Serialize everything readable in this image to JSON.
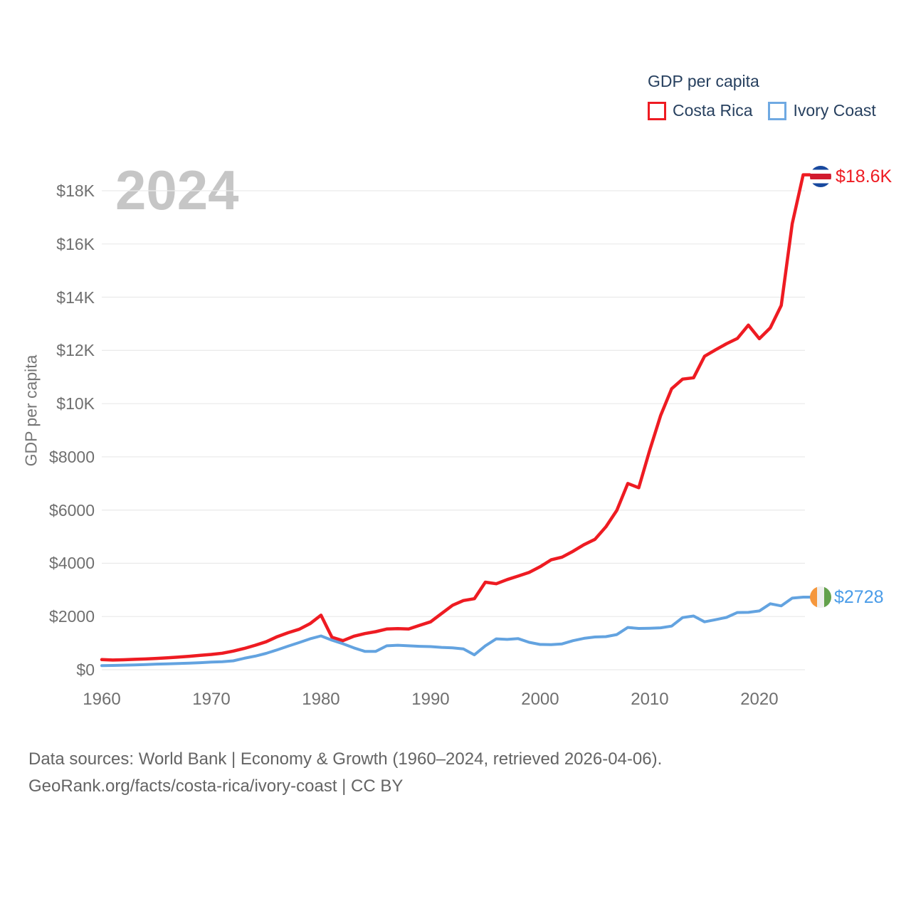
{
  "watermark": "2024",
  "legend": {
    "title": "GDP per capita",
    "items": [
      {
        "label": "Costa Rica",
        "color": "#ee1b22"
      },
      {
        "label": "Ivory Coast",
        "color": "#6fa9e2"
      }
    ]
  },
  "y_axis": {
    "title": "GDP per capita",
    "ticks": [
      {
        "label": "$18K",
        "value": 18000
      },
      {
        "label": "$16K",
        "value": 16000
      },
      {
        "label": "$14K",
        "value": 14000
      },
      {
        "label": "$12K",
        "value": 12000
      },
      {
        "label": "$10K",
        "value": 10000
      },
      {
        "label": "$8000",
        "value": 8000
      },
      {
        "label": "$6000",
        "value": 6000
      },
      {
        "label": "$4000",
        "value": 4000
      },
      {
        "label": "$2000",
        "value": 2000
      },
      {
        "label": "$0",
        "value": 0
      }
    ]
  },
  "x_axis": {
    "ticks": [
      {
        "label": "1960",
        "value": 1960
      },
      {
        "label": "1970",
        "value": 1970
      },
      {
        "label": "1980",
        "value": 1980
      },
      {
        "label": "1990",
        "value": 1990
      },
      {
        "label": "2000",
        "value": 2000
      },
      {
        "label": "2010",
        "value": 2010
      },
      {
        "label": "2020",
        "value": 2020
      }
    ]
  },
  "end_labels": {
    "costa_rica": {
      "series": "Costa Rica",
      "label": "$18.6K",
      "flag_icon": "costa-rica-flag-icon",
      "color": "#ee1b22"
    },
    "ivory_coast": {
      "series": "Ivory Coast",
      "label": "$2728",
      "flag_icon": "ivory-coast-flag-icon",
      "color": "#4a9ce8"
    }
  },
  "footer": {
    "line1": "Data sources: World Bank | Economy & Growth (1960–2024, retrieved 2026-04-06).",
    "line2": "GeoRank.org/facts/costa-rica/ivory-coast | CC BY"
  },
  "colors": {
    "costa_rica_line": "#ee1b22",
    "ivory_coast_line": "#63a3e0",
    "gridline": "#ebebeb",
    "axis_text": "#6f6f6f",
    "legend_text": "#27405f",
    "watermark": "#c6c6c6",
    "footer_text": "#646464"
  },
  "chart_data": {
    "type": "line",
    "title": "GDP per capita",
    "ylabel": "GDP per capita",
    "xlabel": "",
    "x_range": [
      1960,
      2024
    ],
    "ylim": [
      0,
      18600
    ],
    "grid": "horizontal",
    "legend_position": "top-right",
    "x": [
      1960,
      1961,
      1962,
      1963,
      1964,
      1965,
      1966,
      1967,
      1968,
      1969,
      1970,
      1971,
      1972,
      1973,
      1974,
      1975,
      1976,
      1977,
      1978,
      1979,
      1980,
      1981,
      1982,
      1983,
      1984,
      1985,
      1986,
      1987,
      1988,
      1989,
      1990,
      1991,
      1992,
      1993,
      1994,
      1995,
      1996,
      1997,
      1998,
      1999,
      2000,
      2001,
      2002,
      2003,
      2004,
      2005,
      2006,
      2007,
      2008,
      2009,
      2010,
      2011,
      2012,
      2013,
      2014,
      2015,
      2016,
      2017,
      2018,
      2019,
      2020,
      2021,
      2022,
      2023,
      2024
    ],
    "series": [
      {
        "name": "Costa Rica",
        "color": "#ee1b22",
        "end_label": "$18.6K",
        "values": [
          380,
          365,
          375,
          390,
          405,
          425,
          450,
          475,
          505,
          540,
          575,
          620,
          700,
          800,
          920,
          1050,
          1240,
          1390,
          1520,
          1730,
          2050,
          1220,
          1090,
          1260,
          1360,
          1430,
          1530,
          1545,
          1530,
          1670,
          1800,
          2110,
          2420,
          2600,
          2670,
          3290,
          3230,
          3390,
          3520,
          3660,
          3870,
          4130,
          4230,
          4450,
          4700,
          4900,
          5370,
          5990,
          7000,
          6840,
          8250,
          9560,
          10560,
          10920,
          10970,
          11780,
          12020,
          12250,
          12450,
          12950,
          12440,
          12850,
          13690,
          16760,
          18600
        ]
      },
      {
        "name": "Ivory Coast",
        "color": "#63a3e0",
        "end_label": "$2728",
        "values": [
          155,
          160,
          170,
          180,
          195,
          210,
          220,
          235,
          250,
          265,
          285,
          300,
          335,
          430,
          510,
          615,
          745,
          885,
          1020,
          1160,
          1270,
          1110,
          975,
          820,
          690,
          690,
          900,
          920,
          900,
          880,
          870,
          840,
          820,
          780,
          560,
          900,
          1160,
          1140,
          1170,
          1030,
          950,
          945,
          970,
          1090,
          1180,
          1230,
          1245,
          1320,
          1590,
          1550,
          1560,
          1575,
          1640,
          1960,
          2020,
          1800,
          1880,
          1965,
          2150,
          2155,
          2210,
          2480,
          2400,
          2690,
          2728
        ]
      }
    ]
  }
}
